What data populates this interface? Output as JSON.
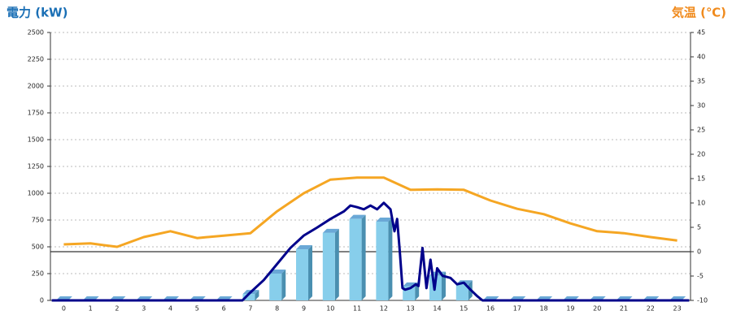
{
  "chart_data": {
    "type": "bar",
    "y_axis_label": "電力 (kW)",
    "y2_axis_label": "気温 (℃)",
    "categories": [
      "0",
      "1",
      "2",
      "3",
      "4",
      "5",
      "6",
      "7",
      "8",
      "9",
      "10",
      "11",
      "12",
      "13",
      "14",
      "15",
      "16",
      "17",
      "18",
      "19",
      "20",
      "21",
      "22",
      "23"
    ],
    "ylim": [
      0,
      2500
    ],
    "yticks": [
      0,
      250,
      500,
      750,
      1000,
      1250,
      1500,
      1750,
      2000,
      2250,
      2500
    ],
    "y2lim": [
      -10,
      45
    ],
    "y2ticks": [
      -10,
      -5,
      0,
      5,
      10,
      15,
      20,
      25,
      30,
      35,
      40,
      45
    ],
    "grid": true,
    "series": [
      {
        "type": "bar",
        "color": "#87ceeb",
        "values": [
          0,
          0,
          0,
          0,
          0,
          0,
          0,
          60,
          250,
          477,
          630,
          760,
          735,
          130,
          230,
          150,
          0,
          0,
          0,
          0,
          0,
          0,
          0,
          0
        ]
      },
      {
        "type": "line",
        "color": "#00008b",
        "x": [
          -0.45,
          6.7,
          7,
          7.5,
          8,
          8.5,
          9,
          9.5,
          10,
          10.5,
          10.75,
          11,
          11.25,
          11.5,
          11.75,
          12,
          12.25,
          12.4,
          12.5,
          12.6,
          12.7,
          12.8,
          13,
          13.2,
          13.3,
          13.45,
          13.6,
          13.75,
          13.9,
          14,
          14.2,
          14.5,
          14.75,
          15,
          15.25,
          15.5,
          15.7,
          23.45
        ],
        "values": [
          0,
          0,
          75,
          190,
          340,
          490,
          605,
          680,
          760,
          830,
          885,
          870,
          850,
          885,
          850,
          910,
          850,
          645,
          760,
          455,
          115,
          100,
          115,
          150,
          135,
          490,
          115,
          380,
          100,
          300,
          230,
          210,
          150,
          165,
          100,
          40,
          0,
          0
        ]
      },
      {
        "type": "line",
        "axis": "y2",
        "color": "#f5a623",
        "values": [
          1.5,
          1.7,
          1,
          3,
          4.2,
          2.8,
          3.3,
          3.8,
          8.3,
          12,
          14.8,
          15.2,
          15.2,
          12.7,
          12.8,
          12.7,
          10.5,
          8.8,
          7.7,
          5.8,
          4.2,
          3.8,
          3,
          2.3
        ]
      }
    ]
  }
}
